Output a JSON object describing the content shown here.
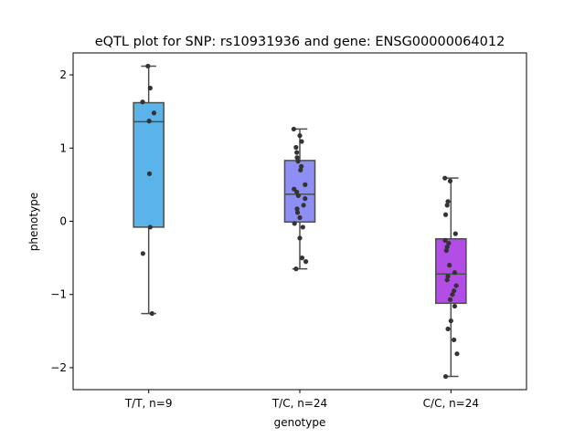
{
  "chart_data": {
    "type": "box",
    "title": "eQTL plot for SNP: rs10931936 and gene: ENSG00000064012",
    "xlabel": "genotype",
    "ylabel": "phenotype",
    "ylim": [
      -2.3,
      2.3
    ],
    "yticks": [
      -2,
      -1,
      0,
      1,
      2
    ],
    "ytick_labels": [
      "−2",
      "−1",
      "0",
      "1",
      "2"
    ],
    "grid": false,
    "groups": [
      {
        "label": "T/T, n=9",
        "color": "#5ab4ea",
        "box": {
          "whisker_low": -1.26,
          "q1": -0.08,
          "median": 1.36,
          "q3": 1.62,
          "whisker_high": 2.12
        },
        "points": [
          [
            -0.05,
            2.12
          ],
          [
            -0.4,
            1.63
          ],
          [
            0.1,
            1.82
          ],
          [
            0.03,
            1.37
          ],
          [
            0.35,
            1.48
          ],
          [
            0.05,
            0.65
          ],
          [
            0.1,
            -0.08
          ],
          [
            -0.38,
            -0.44
          ],
          [
            0.22,
            -1.26
          ]
        ]
      },
      {
        "label": "T/C, n=24",
        "color": "#8e8ff5",
        "box": {
          "whisker_low": -0.65,
          "q1": -0.01,
          "median": 0.37,
          "q3": 0.83,
          "whisker_high": 1.26
        },
        "points": [
          [
            -0.4,
            1.26
          ],
          [
            0.0,
            1.17
          ],
          [
            0.12,
            1.09
          ],
          [
            -0.25,
            1.01
          ],
          [
            -0.2,
            0.94
          ],
          [
            -0.18,
            0.87
          ],
          [
            -0.12,
            0.82
          ],
          [
            0.1,
            0.75
          ],
          [
            0.05,
            0.7
          ],
          [
            0.35,
            0.5
          ],
          [
            -0.38,
            0.44
          ],
          [
            -0.2,
            0.4
          ],
          [
            -0.1,
            0.35
          ],
          [
            0.35,
            0.31
          ],
          [
            -0.18,
            0.17
          ],
          [
            -0.15,
            0.12
          ],
          [
            0.0,
            0.05
          ],
          [
            -0.35,
            -0.03
          ],
          [
            0.2,
            -0.08
          ],
          [
            0.0,
            -0.23
          ],
          [
            0.15,
            -0.5
          ],
          [
            0.4,
            -0.55
          ],
          [
            -0.25,
            -0.65
          ],
          [
            0.25,
            0.22
          ]
        ]
      },
      {
        "label": "C/C, n=24",
        "color": "#b24de6",
        "box": {
          "whisker_low": -2.12,
          "q1": -1.12,
          "median": -0.72,
          "q3": -0.24,
          "whisker_high": 0.59
        },
        "points": [
          [
            -0.4,
            0.59
          ],
          [
            -0.05,
            0.55
          ],
          [
            -0.2,
            0.27
          ],
          [
            -0.25,
            0.22
          ],
          [
            -0.35,
            0.09
          ],
          [
            -0.38,
            -0.26
          ],
          [
            0.3,
            -0.17
          ],
          [
            -0.15,
            -0.3
          ],
          [
            -0.25,
            -0.35
          ],
          [
            -0.3,
            -0.4
          ],
          [
            -0.1,
            -0.6
          ],
          [
            0.25,
            -0.7
          ],
          [
            -0.2,
            -0.75
          ],
          [
            -0.25,
            -0.8
          ],
          [
            0.35,
            -0.88
          ],
          [
            0.2,
            -0.95
          ],
          [
            0.1,
            -1.0
          ],
          [
            -0.05,
            -1.07
          ],
          [
            0.25,
            -1.16
          ],
          [
            0.0,
            -1.36
          ],
          [
            -0.2,
            -1.47
          ],
          [
            0.2,
            -1.62
          ],
          [
            0.4,
            -1.81
          ],
          [
            -0.35,
            -2.12
          ]
        ]
      }
    ]
  }
}
